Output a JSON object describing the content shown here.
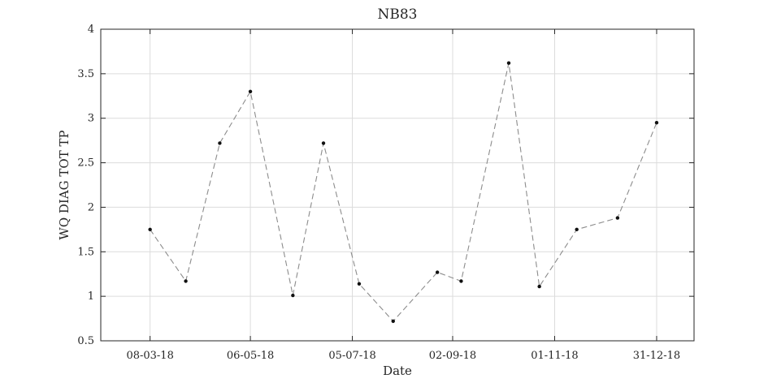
{
  "chart_data": {
    "type": "line",
    "title": "NB83",
    "xlabel": "Date",
    "ylabel": "WQ DIAG TOT TP",
    "ylim": [
      0.5,
      4
    ],
    "yticks": [
      0.5,
      1,
      1.5,
      2,
      2.5,
      3,
      3.5,
      4
    ],
    "ytick_labels": [
      "0.5",
      "1",
      "1.5",
      "2",
      "2.5",
      "3",
      "3.5",
      "4"
    ],
    "xlim": [
      "2018-02-07",
      "2019-01-22"
    ],
    "xticks": [
      "2018-03-08",
      "2018-05-06",
      "2018-07-05",
      "2018-09-02",
      "2018-11-01",
      "2018-12-31"
    ],
    "xtick_labels": [
      "08-03-18",
      "06-05-18",
      "05-07-18",
      "02-09-18",
      "01-11-18",
      "31-12-18"
    ],
    "grid": true,
    "series": [
      {
        "x": [
          "2018-03-08",
          "2018-03-29",
          "2018-04-18",
          "2018-05-06",
          "2018-05-31",
          "2018-06-18",
          "2018-07-09",
          "2018-07-29",
          "2018-08-24",
          "2018-09-07",
          "2018-10-05",
          "2018-10-23",
          "2018-11-14",
          "2018-12-08",
          "2018-12-31"
        ],
        "y": [
          1.75,
          1.17,
          2.72,
          3.3,
          1.01,
          2.72,
          1.14,
          0.72,
          1.27,
          1.17,
          3.62,
          1.11,
          1.75,
          1.88,
          2.95
        ],
        "color": "#8c8c8c",
        "line_style": "dashed",
        "marker_color": "#111111"
      }
    ]
  }
}
